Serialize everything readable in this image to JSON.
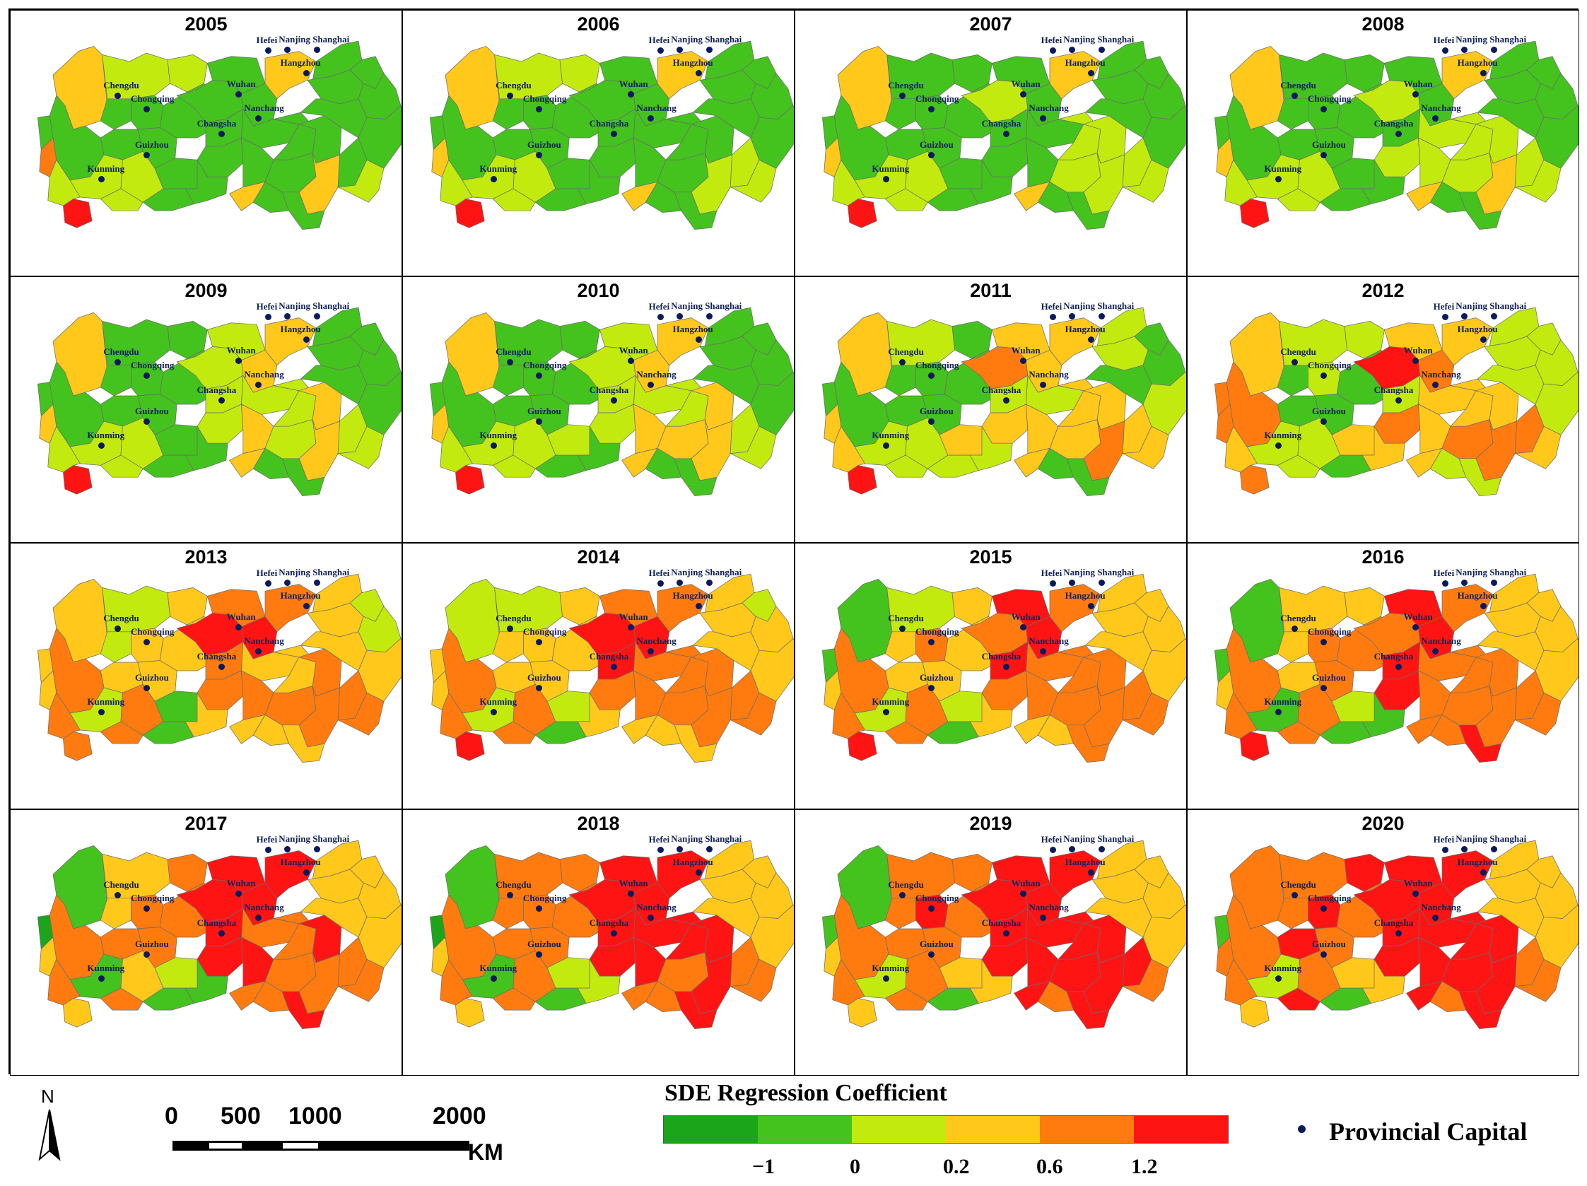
{
  "colors": {
    "c0": "#1aa51a",
    "c1": "#44c21e",
    "c2": "#c3ea0e",
    "c3": "#ffc81a",
    "c4": "#ff7b0f",
    "c5": "#ff1414",
    "dot": "#0b1a5c"
  },
  "panels": [
    {
      "year": "2005",
      "regions": [
        3,
        2,
        2,
        1,
        1,
        1,
        1,
        1,
        1,
        1,
        1,
        1,
        1,
        1,
        1,
        1,
        1,
        1,
        3,
        1,
        3,
        1,
        1,
        2,
        2,
        1,
        1,
        1,
        5,
        4,
        2,
        2,
        1,
        1,
        3,
        2,
        1,
        1,
        1,
        1,
        1,
        1
      ]
    },
    {
      "year": "2006",
      "regions": [
        3,
        2,
        2,
        1,
        1,
        1,
        1,
        1,
        1,
        1,
        1,
        1,
        1,
        1,
        1,
        1,
        1,
        1,
        2,
        2,
        3,
        1,
        1,
        2,
        2,
        1,
        1,
        1,
        5,
        3,
        2,
        2,
        1,
        1,
        3,
        2,
        1,
        1,
        1,
        1,
        1,
        1
      ]
    },
    {
      "year": "2007",
      "regions": [
        3,
        1,
        1,
        1,
        1,
        1,
        1,
        1,
        2,
        1,
        1,
        1,
        1,
        1,
        1,
        2,
        2,
        2,
        2,
        2,
        3,
        1,
        1,
        2,
        2,
        1,
        1,
        1,
        5,
        3,
        2,
        2,
        1,
        1,
        3,
        2,
        1,
        1,
        1,
        1,
        1,
        1
      ]
    },
    {
      "year": "2008",
      "regions": [
        3,
        1,
        1,
        1,
        1,
        1,
        1,
        1,
        2,
        1,
        1,
        2,
        1,
        2,
        2,
        2,
        2,
        2,
        3,
        2,
        3,
        1,
        1,
        2,
        2,
        1,
        1,
        1,
        5,
        3,
        2,
        2,
        1,
        1,
        3,
        2,
        1,
        1,
        1,
        1,
        1,
        1
      ]
    },
    {
      "year": "2009",
      "regions": [
        3,
        1,
        1,
        1,
        1,
        1,
        1,
        1,
        2,
        3,
        2,
        2,
        2,
        2,
        3,
        2,
        2,
        3,
        3,
        2,
        3,
        1,
        1,
        2,
        2,
        1,
        1,
        1,
        5,
        3,
        2,
        2,
        1,
        1,
        3,
        2,
        1,
        1,
        1,
        1,
        1,
        1
      ]
    },
    {
      "year": "2010",
      "regions": [
        3,
        1,
        1,
        1,
        1,
        1,
        1,
        1,
        2,
        3,
        2,
        2,
        2,
        2,
        3,
        2,
        3,
        3,
        3,
        2,
        3,
        1,
        1,
        2,
        2,
        1,
        2,
        1,
        5,
        3,
        2,
        2,
        1,
        1,
        3,
        2,
        1,
        1,
        1,
        1,
        1,
        1
      ]
    },
    {
      "year": "2011",
      "regions": [
        3,
        2,
        1,
        1,
        1,
        1,
        1,
        1,
        4,
        3,
        3,
        2,
        2,
        3,
        3,
        3,
        3,
        3,
        4,
        3,
        3,
        1,
        1,
        2,
        2,
        2,
        3,
        2,
        5,
        3,
        3,
        2,
        1,
        1,
        3,
        3,
        2,
        2,
        1,
        1,
        1,
        2
      ]
    },
    {
      "year": "2012",
      "regions": [
        3,
        2,
        2,
        1,
        2,
        1,
        1,
        1,
        5,
        4,
        3,
        3,
        2,
        4,
        3,
        3,
        4,
        3,
        4,
        4,
        3,
        4,
        4,
        2,
        2,
        1,
        3,
        3,
        4,
        4,
        3,
        2,
        2,
        2,
        3,
        3,
        2,
        2,
        2,
        2,
        2,
        2
      ]
    },
    {
      "year": "2013",
      "regions": [
        3,
        2,
        3,
        2,
        3,
        3,
        3,
        3,
        5,
        5,
        4,
        3,
        4,
        4,
        4,
        3,
        4,
        4,
        4,
        4,
        4,
        3,
        4,
        2,
        4,
        1,
        1,
        3,
        4,
        3,
        4,
        4,
        3,
        3,
        3,
        4,
        3,
        3,
        2,
        2,
        3,
        3
      ]
    },
    {
      "year": "2014",
      "regions": [
        2,
        2,
        3,
        3,
        3,
        3,
        3,
        3,
        5,
        5,
        4,
        4,
        5,
        4,
        4,
        4,
        4,
        4,
        4,
        4,
        4,
        3,
        4,
        2,
        4,
        1,
        2,
        3,
        5,
        3,
        4,
        4,
        3,
        3,
        3,
        4,
        3,
        3,
        2,
        3,
        3,
        3
      ]
    },
    {
      "year": "2015",
      "regions": [
        1,
        2,
        3,
        3,
        4,
        3,
        3,
        3,
        4,
        5,
        5,
        4,
        5,
        4,
        4,
        4,
        4,
        4,
        4,
        4,
        4,
        1,
        4,
        2,
        4,
        1,
        2,
        3,
        5,
        3,
        4,
        4,
        4,
        3,
        3,
        4,
        3,
        3,
        3,
        3,
        3,
        3
      ]
    },
    {
      "year": "2016",
      "regions": [
        1,
        3,
        3,
        3,
        4,
        4,
        3,
        4,
        4,
        5,
        5,
        4,
        5,
        5,
        4,
        4,
        4,
        4,
        4,
        4,
        4,
        1,
        4,
        1,
        4,
        1,
        2,
        1,
        5,
        3,
        4,
        4,
        5,
        4,
        4,
        4,
        3,
        3,
        3,
        3,
        3,
        3
      ]
    },
    {
      "year": "2017",
      "regions": [
        1,
        3,
        4,
        3,
        4,
        4,
        4,
        4,
        5,
        5,
        5,
        4,
        5,
        5,
        5,
        4,
        4,
        5,
        4,
        4,
        5,
        0,
        4,
        1,
        3,
        1,
        2,
        1,
        3,
        3,
        4,
        4,
        5,
        4,
        4,
        4,
        3,
        3,
        3,
        3,
        3,
        3
      ]
    },
    {
      "year": "2018",
      "regions": [
        1,
        4,
        4,
        4,
        4,
        4,
        4,
        4,
        5,
        5,
        5,
        5,
        5,
        5,
        5,
        5,
        4,
        5,
        5,
        4,
        5,
        0,
        4,
        1,
        4,
        1,
        2,
        2,
        3,
        3,
        4,
        4,
        5,
        4,
        4,
        4,
        3,
        3,
        3,
        3,
        3,
        3
      ]
    },
    {
      "year": "2019",
      "regions": [
        1,
        4,
        4,
        4,
        5,
        4,
        4,
        4,
        5,
        5,
        5,
        5,
        5,
        5,
        5,
        5,
        5,
        5,
        5,
        5,
        5,
        1,
        4,
        2,
        4,
        1,
        3,
        3,
        3,
        3,
        4,
        4,
        5,
        4,
        5,
        4,
        3,
        3,
        3,
        3,
        3,
        3
      ]
    },
    {
      "year": "2020",
      "regions": [
        4,
        4,
        5,
        4,
        5,
        4,
        5,
        4,
        5,
        5,
        5,
        5,
        5,
        5,
        5,
        5,
        5,
        5,
        5,
        4,
        5,
        1,
        4,
        2,
        4,
        1,
        3,
        3,
        3,
        4,
        4,
        5,
        5,
        4,
        5,
        4,
        3,
        3,
        3,
        3,
        3,
        3
      ]
    }
  ],
  "capitals": [
    "Chengdu",
    "Chongqing",
    "Guizhou",
    "Kunming",
    "Wuhan",
    "Changsha",
    "Nanchang",
    "Hefei",
    "Nanjing",
    "Shanghai",
    "Hangzhou"
  ],
  "scale_bar": {
    "ticks": [
      "0",
      "500",
      "1000",
      "2000"
    ],
    "unit": "KM"
  },
  "north_label": "N",
  "legend": {
    "title": "SDE Regression Coefficient",
    "labels": [
      "−1",
      "0",
      "0.2",
      "0.6",
      "1.2"
    ],
    "marker_label": "Provincial Capital"
  }
}
